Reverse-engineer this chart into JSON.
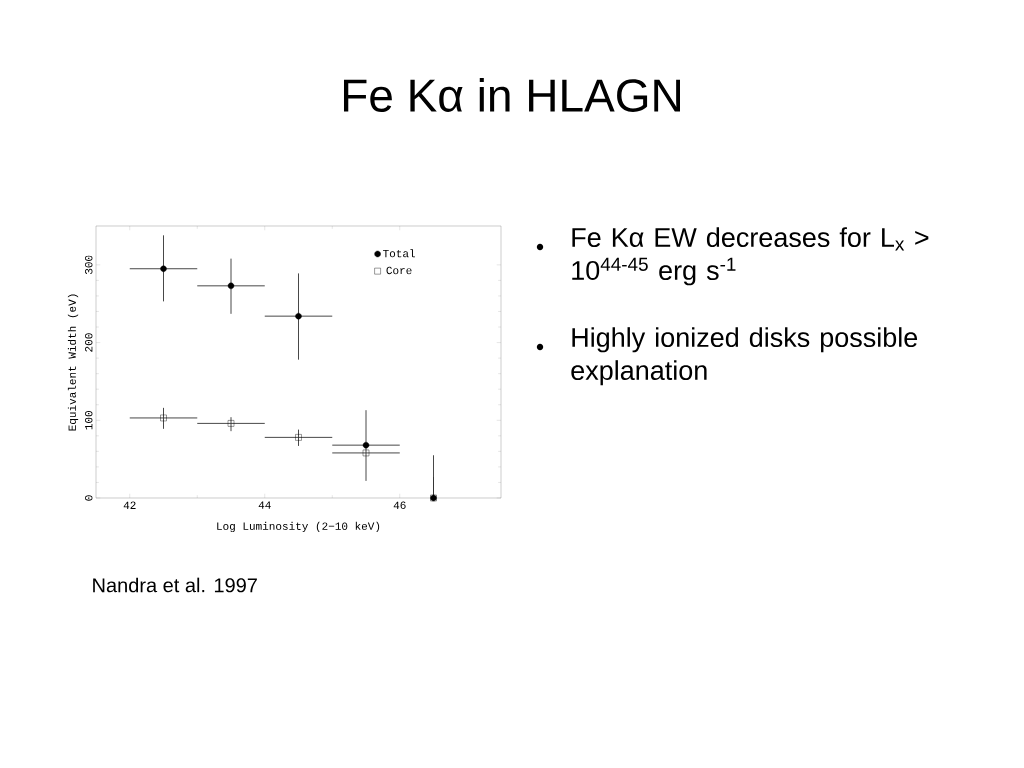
{
  "chart_data": {
    "type": "scatter",
    "title": "Fe Kα in HLAGN",
    "xlabel": "Log Luminosity (2−10 keV)",
    "ylabel": "Equivalent Width  (eV)",
    "annotations": [
      "Fe Kα EW decreases for L$_{x}$ > 10$^{44-45}$ erg s$^{-1}$",
      "Highly ionized disks possible explanation",
      "Nandra et al. 1997"
    ],
    "x": [
      42.5,
      43.5,
      44.5,
      45.5,
      46.5
    ],
    "series": [
      {
        "name": "Total",
        "color": "#000000",
        "marker": "circle",
        "values": [
          295,
          273,
          234,
          68,
          0
        ],
        "errors": [
          [
            253,
            338
          ],
          [
            237,
            308
          ],
          [
            178,
            289
          ],
          [
            22,
            113
          ],
          [
            0,
            55
          ]
        ],
        "xerrors": [
          0.5,
          0.5,
          0.5,
          0.5,
          null
        ]
      },
      {
        "name": "Core",
        "color": "#000000",
        "marker": "square",
        "values": [
          103,
          96,
          78,
          58,
          0
        ],
        "errors": [
          [
            89,
            116
          ],
          [
            86,
            104
          ],
          [
            67,
            88
          ],
          null,
          [
            0,
            27
          ]
        ],
        "xerrors": [
          0.5,
          0.5,
          0.5,
          0.5,
          null
        ]
      }
    ],
    "xlim": [
      41.5,
      47.5
    ],
    "ylim": [
      0,
      350
    ],
    "xticks": [
      42,
      44,
      46
    ],
    "yticks": [
      0,
      100,
      200,
      300
    ],
    "grid": false,
    "legend": "top right"
  }
}
